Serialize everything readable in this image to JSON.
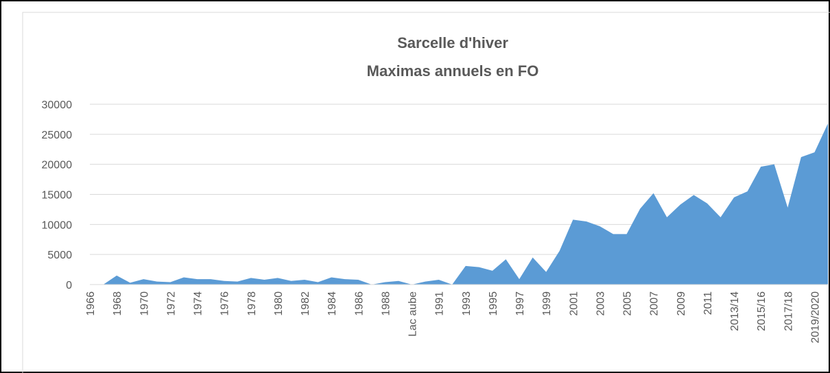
{
  "chart_data": {
    "type": "area",
    "title": "Sarcelle d'hiver",
    "subtitle": "Maximas annuels en FO",
    "categories": [
      "1966",
      null,
      "1968",
      null,
      "1970",
      null,
      "1972",
      null,
      "1974",
      null,
      "1976",
      null,
      "1978",
      null,
      "1980",
      null,
      "1982",
      null,
      "1984",
      null,
      "1986",
      null,
      "1988",
      null,
      "Lac aube",
      null,
      "1991",
      null,
      "1993",
      null,
      "1995",
      null,
      "1997",
      null,
      "1999",
      null,
      "2001",
      null,
      "2003",
      null,
      "2005",
      null,
      "2007",
      null,
      "2009",
      null,
      "2011",
      null,
      "2013/14",
      null,
      "2015/16",
      null,
      "2017/18",
      null,
      "2019/2020",
      null
    ],
    "values": [
      0,
      0,
      1500,
      300,
      900,
      500,
      400,
      1200,
      900,
      900,
      600,
      500,
      1100,
      800,
      1100,
      600,
      800,
      400,
      1200,
      900,
      800,
      0,
      400,
      600,
      0,
      500,
      800,
      0,
      3100,
      2900,
      2300,
      4200,
      900,
      4500,
      2100,
      5600,
      10800,
      10500,
      9700,
      8400,
      8400,
      12600,
      15200,
      11200,
      13300,
      14900,
      13500,
      11200,
      14500,
      15500,
      19600,
      20000,
      12800,
      21200,
      22000,
      26800
    ],
    "color": "#5b9bd5",
    "ylim": [
      0,
      30000
    ],
    "yticks": [
      0,
      5000,
      10000,
      15000,
      20000,
      25000,
      30000
    ],
    "grid": true
  }
}
